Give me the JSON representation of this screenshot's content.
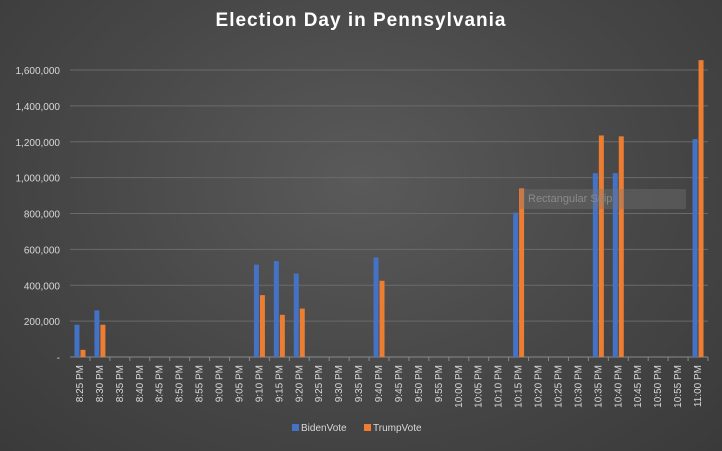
{
  "chart_data": {
    "type": "bar",
    "title": "Election Day in Pennsylvania",
    "categories": [
      "8:25 PM",
      "8:30 PM",
      "8:35 PM",
      "8:40 PM",
      "8:45 PM",
      "8:50 PM",
      "8:55 PM",
      "9:00 PM",
      "9:05 PM",
      "9:10 PM",
      "9:15 PM",
      "9:20 PM",
      "9:25 PM",
      "9:30 PM",
      "9:35 PM",
      "9:40 PM",
      "9:45 PM",
      "9:50 PM",
      "9:55 PM",
      "10:00 PM",
      "10:05 PM",
      "10:10 PM",
      "10:15 PM",
      "10:20 PM",
      "10:25 PM",
      "10:30 PM",
      "10:35 PM",
      "10:40 PM",
      "10:45 PM",
      "10:50 PM",
      "10:55 PM",
      "11:00 PM"
    ],
    "series": [
      {
        "name": "BidenVote",
        "color": "#4472c4",
        "values": [
          180000,
          260000,
          null,
          null,
          null,
          null,
          null,
          null,
          null,
          515000,
          535000,
          465000,
          null,
          null,
          null,
          555000,
          null,
          null,
          null,
          null,
          null,
          null,
          805000,
          null,
          null,
          null,
          1025000,
          1025000,
          null,
          null,
          null,
          1215000
        ]
      },
      {
        "name": "TrumpVote",
        "color": "#ed7d31",
        "values": [
          40000,
          180000,
          null,
          null,
          null,
          null,
          null,
          null,
          null,
          345000,
          235000,
          270000,
          null,
          null,
          null,
          425000,
          null,
          null,
          null,
          null,
          null,
          null,
          940000,
          null,
          null,
          null,
          1235000,
          1230000,
          null,
          null,
          null,
          1655000
        ]
      }
    ],
    "yticks": [
      0,
      200000,
      400000,
      600000,
      800000,
      1000000,
      1200000,
      1400000,
      1600000
    ],
    "ytick_labels": [
      "-",
      "200,000",
      "400,000",
      "600,000",
      "800,000",
      "1,000,000",
      "1,200,000",
      "1,400,000",
      "1,600,000"
    ],
    "ylim": [
      0,
      1700000
    ],
    "grid": true,
    "legend_position": "bottom"
  },
  "overlay": {
    "tooltip_text": "Rectangular Snip"
  }
}
